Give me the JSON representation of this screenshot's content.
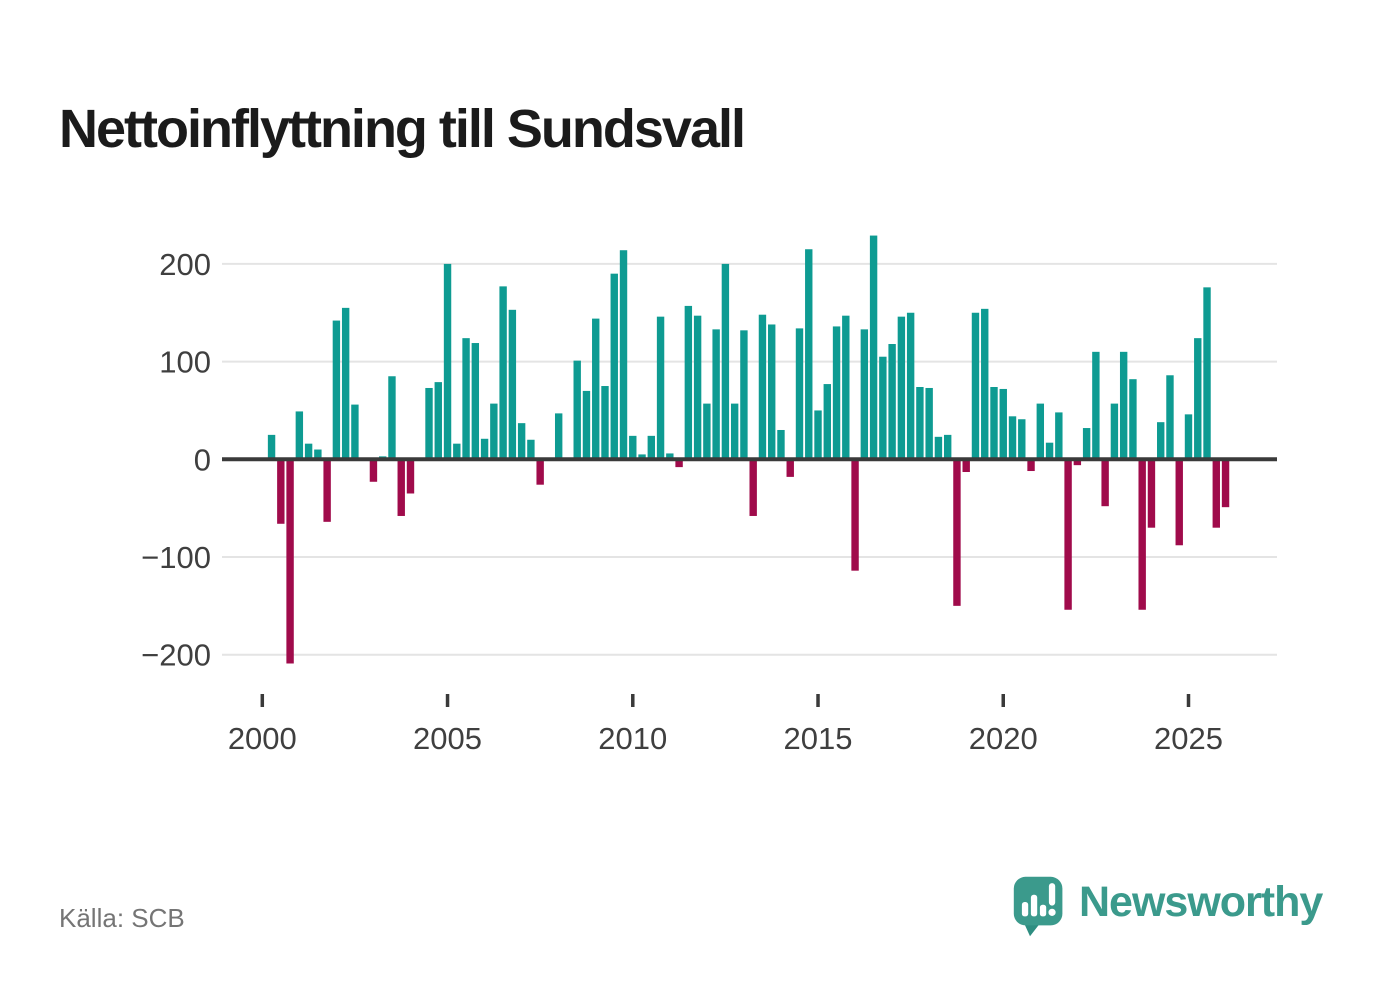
{
  "title": "Nettoinflyttning till Sundsvall",
  "source": {
    "text": "Källa: SCB"
  },
  "branding": {
    "wordmark": "Newsworthy",
    "icon": "newsworthy-speech-bubble-bar-chart-icon"
  },
  "colors": {
    "positive_bar": "#0e9b92",
    "negative_bar": "#a00b4b",
    "gridline": "#e4e4e4",
    "zero_line": "#3a3a3a",
    "tick_mark": "#3a3a3a",
    "axis_text": "#3f3f3f",
    "title_text": "#1b1b1b",
    "source_text": "#757575",
    "brand_teal": "#3b9a8c",
    "background": "#ffffff"
  },
  "chart_data": {
    "type": "bar",
    "title": "Nettoinflyttning till Sundsvall",
    "x_tick_labels": [
      "2000",
      "2005",
      "2010",
      "2015",
      "2020",
      "2025"
    ],
    "x_tick_years": [
      2000,
      2005,
      2010,
      2015,
      2020,
      2025
    ],
    "y_tick_labels": [
      "200",
      "100",
      "0",
      "−100",
      "−200"
    ],
    "y_ticks": [
      200,
      100,
      0,
      -100,
      -200
    ],
    "ylim": [
      -235,
      235
    ],
    "grid": "horizontal-only",
    "legend": "none",
    "bar_color_rule": "teal when positive, dark red when negative",
    "quarters": [
      "2000Q1",
      "2000Q2",
      "2000Q3",
      "2000Q4",
      "2001Q1",
      "2001Q2",
      "2001Q3",
      "2001Q4",
      "2002Q1",
      "2002Q2",
      "2002Q3",
      "2002Q4",
      "2003Q1",
      "2003Q2",
      "2003Q3",
      "2003Q4",
      "2004Q1",
      "2004Q2",
      "2004Q3",
      "2004Q4",
      "2005Q1",
      "2005Q2",
      "2005Q3",
      "2005Q4",
      "2006Q1",
      "2006Q2",
      "2006Q3",
      "2006Q4",
      "2007Q1",
      "2007Q2",
      "2007Q3",
      "2007Q4",
      "2008Q1",
      "2008Q2",
      "2008Q3",
      "2008Q4",
      "2009Q1",
      "2009Q2",
      "2009Q3",
      "2009Q4",
      "2010Q1",
      "2010Q2",
      "2010Q3",
      "2010Q4",
      "2011Q1",
      "2011Q2",
      "2011Q3",
      "2011Q4",
      "2012Q1",
      "2012Q2",
      "2012Q3",
      "2012Q4",
      "2013Q1",
      "2013Q2",
      "2013Q3",
      "2013Q4",
      "2014Q1",
      "2014Q2",
      "2014Q3",
      "2014Q4",
      "2015Q1",
      "2015Q2",
      "2015Q3",
      "2015Q4",
      "2016Q1",
      "2016Q2",
      "2016Q3",
      "2016Q4",
      "2017Q1",
      "2017Q2",
      "2017Q3",
      "2017Q4",
      "2018Q1",
      "2018Q2",
      "2018Q3",
      "2018Q4",
      "2019Q1",
      "2019Q2",
      "2019Q3",
      "2019Q4",
      "2020Q1",
      "2020Q2",
      "2020Q3",
      "2020Q4",
      "2021Q1",
      "2021Q2",
      "2021Q3",
      "2021Q4",
      "2022Q1",
      "2022Q2",
      "2022Q3",
      "2022Q4",
      "2023Q1",
      "2023Q2",
      "2023Q3",
      "2023Q4",
      "2024Q1",
      "2024Q2",
      "2024Q3",
      "2024Q4",
      "2025Q1",
      "2025Q2",
      "2025Q3",
      "2025Q4",
      "2026Q1"
    ],
    "values": [
      0,
      25,
      -66,
      -209,
      49,
      16,
      10,
      -64,
      142,
      155,
      56,
      0,
      -23,
      3,
      85,
      -58,
      -35,
      0,
      73,
      79,
      200,
      16,
      124,
      119,
      21,
      57,
      177,
      153,
      37,
      20,
      -26,
      0,
      47,
      0,
      101,
      70,
      144,
      75,
      190,
      214,
      24,
      5,
      24,
      146,
      6,
      -8,
      157,
      147,
      57,
      133,
      200,
      57,
      132,
      -58,
      148,
      138,
      30,
      -18,
      134,
      215,
      50,
      77,
      136,
      147,
      -114,
      133,
      229,
      105,
      118,
      146,
      150,
      74,
      73,
      23,
      25,
      -150,
      -13,
      150,
      154,
      74,
      72,
      44,
      41,
      -12,
      57,
      17,
      48,
      -154,
      -6,
      32,
      110,
      -48,
      57,
      110,
      82,
      -154,
      -70,
      38,
      86,
      -88,
      46,
      124,
      176,
      -70,
      -49
    ]
  }
}
